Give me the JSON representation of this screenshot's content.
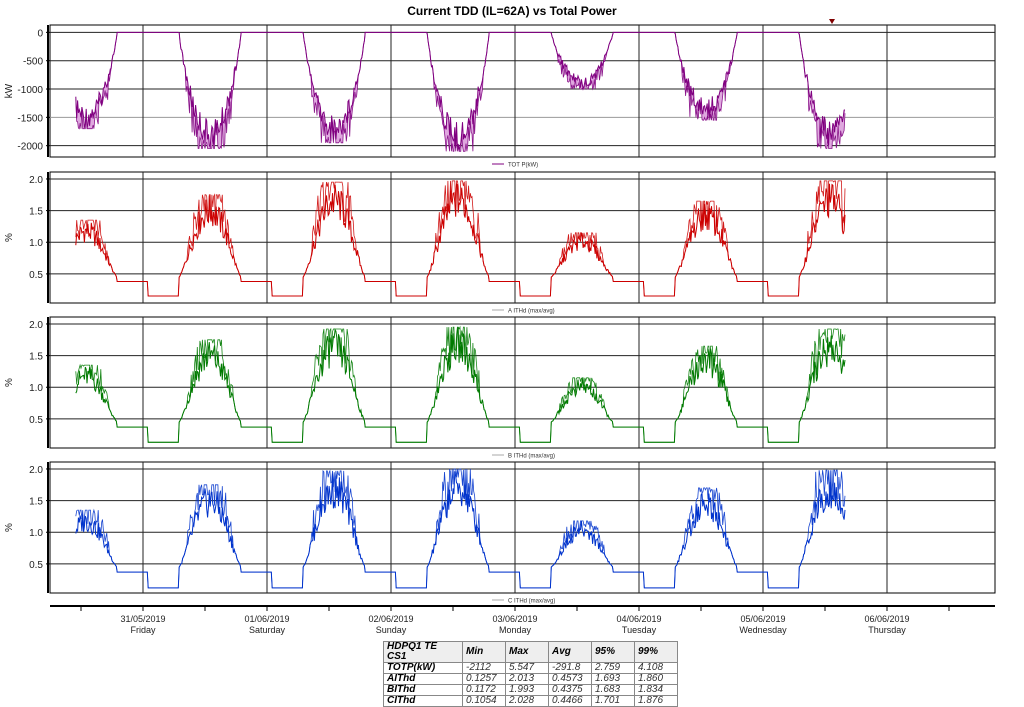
{
  "title": "Current TDD (IL=62A) vs Total Power",
  "chart_data": [
    {
      "type": "line",
      "name": "power",
      "ylabel": "kW",
      "legend": "TOT P(kW)",
      "legend_position": "bottom-center",
      "color": "#800080",
      "band_color": "#dfa8df",
      "ylim": [
        -2200,
        130
      ],
      "yticks": [
        0,
        -500,
        -1000,
        -1500,
        -2000
      ],
      "ytick_labels": [
        "0",
        "-500",
        "-1000",
        "-1500",
        "-2000"
      ],
      "baseline": 0,
      "evening": 0,
      "daily_peaks": [
        -1700,
        -2050,
        -1950,
        -2100,
        -1000,
        -1550,
        -2050,
        -1000
      ]
    },
    {
      "type": "line",
      "name": "a-ithd",
      "ylabel": "%",
      "legend": "A ITHd (max/avg)",
      "legend_position": "bottom-center",
      "color": "#cc0000",
      "ylim": [
        0.04,
        2.11
      ],
      "yticks": [
        0.5,
        1.0,
        1.5,
        2.0
      ],
      "ytick_labels": [
        "0.5",
        "1.0",
        "1.5",
        "2.0"
      ],
      "baseline": 0.15,
      "evening": 0.38,
      "daily_peaks": [
        1.35,
        1.75,
        1.95,
        1.97,
        1.15,
        1.65,
        1.97,
        1.15
      ]
    },
    {
      "type": "line",
      "name": "b-ithd",
      "ylabel": "%",
      "legend": "B ITHd (max/avg)",
      "legend_position": "bottom-center",
      "color": "#007a00",
      "ylim": [
        0.04,
        2.11
      ],
      "yticks": [
        0.5,
        1.0,
        1.5,
        2.0
      ],
      "ytick_labels": [
        "0.5",
        "1.0",
        "1.5",
        "2.0"
      ],
      "baseline": 0.13,
      "evening": 0.37,
      "daily_peaks": [
        1.35,
        1.75,
        1.92,
        1.95,
        1.15,
        1.65,
        1.92,
        1.15
      ]
    },
    {
      "type": "line",
      "name": "c-ithd",
      "ylabel": "%",
      "legend": "C ITHd (max/avg)",
      "legend_position": "bottom-center",
      "color": "#0033cc",
      "ylim": [
        0.04,
        2.11
      ],
      "yticks": [
        0.5,
        1.0,
        1.5,
        2.0
      ],
      "ytick_labels": [
        "0.5",
        "1.0",
        "1.5",
        "2.0"
      ],
      "baseline": 0.12,
      "evening": 0.37,
      "daily_peaks": [
        1.35,
        1.75,
        1.97,
        2.0,
        1.18,
        1.7,
        1.98,
        1.18
      ]
    }
  ],
  "x_axis": {
    "range_hours_from_30_05_2019": [
      11,
      160
    ],
    "dates": [
      "31/05/2019",
      "01/06/2019",
      "02/06/2019",
      "03/06/2019",
      "04/06/2019",
      "05/06/2019",
      "06/06/2019"
    ],
    "days": [
      "Friday",
      "Saturday",
      "Sunday",
      "Monday",
      "Tuesday",
      "Wednesday",
      "Thursday"
    ]
  },
  "stats_table": {
    "header": [
      "HDPQ1 TE CS1",
      "Min",
      "Max",
      "Avg",
      "95%",
      "99%"
    ],
    "rows": [
      [
        "TOTP(kW)",
        "-2112",
        "5.547",
        "-291.8",
        "2.759",
        "4.108"
      ],
      [
        "AIThd",
        "0.1257",
        "2.013",
        "0.4573",
        "1.693",
        "1.860"
      ],
      [
        "BIThd",
        "0.1172",
        "1.993",
        "0.4375",
        "1.683",
        "1.834"
      ],
      [
        "CIThd",
        "0.1054",
        "2.028",
        "0.4466",
        "1.701",
        "1.876"
      ]
    ]
  }
}
